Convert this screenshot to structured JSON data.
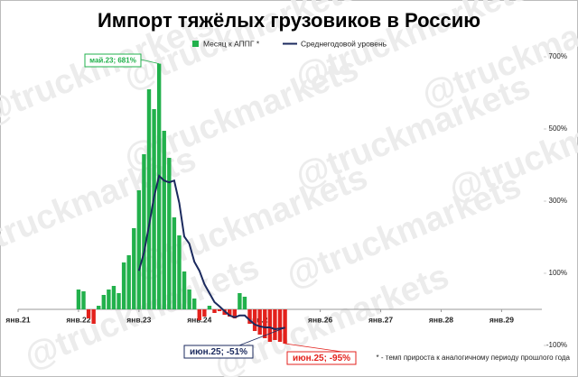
{
  "chart_data": {
    "type": "bar-line",
    "title": "Импорт тяжёлых грузовиков в Россию",
    "watermark": "@truckmarkets",
    "footnote": "* - темп прироста к аналогичному периоду прошлого года",
    "x": [
      12,
      13,
      14,
      15,
      16,
      17,
      18,
      19,
      20,
      21,
      22,
      23,
      24,
      25,
      26,
      27,
      28,
      29,
      30,
      31,
      32,
      33,
      34,
      35,
      36,
      37,
      38,
      39,
      40,
      41,
      42,
      43,
      44,
      45,
      46,
      47,
      48,
      49,
      50,
      51,
      52,
      53
    ],
    "xlim": [
      0,
      104
    ],
    "xticks": [
      {
        "value": 0,
        "label": "янв.21"
      },
      {
        "value": 12,
        "label": "янв.22"
      },
      {
        "value": 24,
        "label": "янв.23"
      },
      {
        "value": 36,
        "label": "янв.24"
      },
      {
        "value": 48,
        "label": "янв.25"
      },
      {
        "value": 60,
        "label": "янв.26"
      },
      {
        "value": 72,
        "label": "янв.27"
      },
      {
        "value": 84,
        "label": "янв.28"
      },
      {
        "value": 96,
        "label": "янв.29"
      }
    ],
    "ylim": [
      -130,
      720
    ],
    "yticks": [
      {
        "value": -100,
        "label": "-100%"
      },
      {
        "value": 100,
        "label": "100%"
      },
      {
        "value": 300,
        "label": "300%"
      },
      {
        "value": 500,
        "label": "500%"
      },
      {
        "value": 700,
        "label": "700%"
      }
    ],
    "series": [
      {
        "name": "Месяц к АППГ *",
        "type": "bar",
        "color": "#22b14c",
        "negative_color": "#e3211c",
        "values": [
          55,
          50,
          -25,
          -40,
          10,
          40,
          55,
          65,
          45,
          130,
          150,
          225,
          330,
          430,
          610,
          555,
          681,
          495,
          420,
          255,
          205,
          105,
          55,
          30,
          -30,
          -20,
          10,
          -10,
          -5,
          -15,
          -20,
          -25,
          45,
          35,
          -40,
          -60,
          -70,
          -80,
          -90,
          -85,
          -90,
          -95
        ]
      },
      {
        "name": "Среднегодовой уровень",
        "type": "line",
        "color": "#1b2a5e",
        "values": [
          null,
          null,
          null,
          null,
          null,
          null,
          null,
          null,
          null,
          null,
          null,
          null,
          107,
          157,
          232,
          312,
          370,
          357,
          352,
          357,
          295,
          202,
          182,
          132,
          107,
          70,
          45,
          20,
          8,
          -5,
          -17,
          -22,
          -17,
          -17,
          -30,
          -42,
          -47,
          -50,
          -50,
          -55,
          -53,
          -51
        ]
      }
    ],
    "annotations": [
      {
        "text": "май.23; 681%",
        "color": "#22b14c"
      },
      {
        "text": "июн.25; -51%",
        "color": "#1b2a5e"
      },
      {
        "text": "июн.25; -95%",
        "color": "#e3211c"
      }
    ]
  }
}
